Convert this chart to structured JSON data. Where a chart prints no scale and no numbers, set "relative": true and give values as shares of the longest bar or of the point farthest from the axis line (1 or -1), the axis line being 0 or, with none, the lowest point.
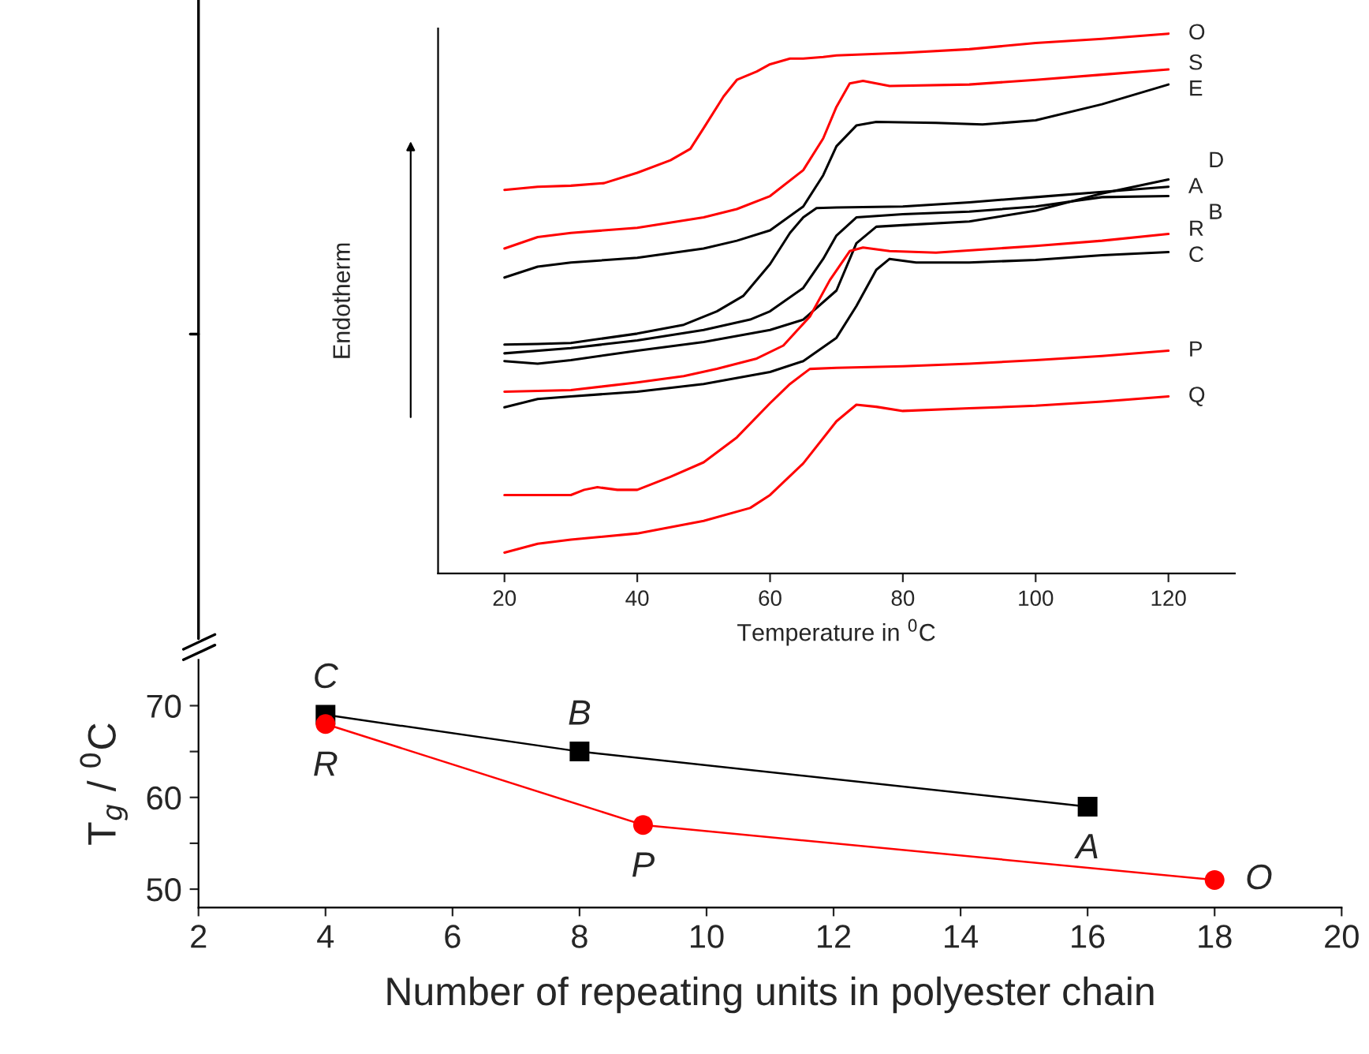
{
  "chart_data": [
    {
      "type": "line",
      "xlabel": "Number of repeating units in polyester chain",
      "ylabel": "T$_{g}$ / $^{0}$C",
      "xlim": [
        2,
        20
      ],
      "xticks": [
        2,
        4,
        6,
        8,
        10,
        12,
        14,
        16,
        18,
        20
      ],
      "ylim": [
        48,
        75
      ],
      "yticks": [
        50,
        {
          "value": 55,
          "label": null
        },
        60,
        {
          "value": 65,
          "label": null
        },
        70
      ],
      "series": [
        {
          "color": "#000000",
          "marker": "square",
          "x": [
            4,
            8,
            16
          ],
          "values": [
            69,
            65,
            59
          ]
        },
        {
          "color": "#ff0000",
          "marker": "circle",
          "x": [
            4,
            9,
            18
          ],
          "values": [
            68,
            57,
            51
          ]
        }
      ],
      "annotations": [
        {
          "text": "C",
          "x": 4,
          "y": 69
        },
        {
          "text": "R",
          "x": 4,
          "y": 68
        },
        {
          "text": "B",
          "x": 8,
          "y": 65
        },
        {
          "text": "P",
          "x": 9,
          "y": 57
        },
        {
          "text": "A",
          "x": 16,
          "y": 59
        },
        {
          "text": "O",
          "x": 18,
          "y": 51
        }
      ],
      "grid": false,
      "legend": false
    },
    {
      "type": "line",
      "relative": true,
      "xlabel": "Temperature in $^{0}$C",
      "ylabel": "Endotherm",
      "xlim": [
        10,
        130
      ],
      "xticks": [
        20,
        40,
        60,
        80,
        100,
        120
      ],
      "series": [
        {
          "name": "O",
          "color": "#ff0000",
          "x": [
            20,
            25,
            30,
            35,
            40,
            45,
            48,
            50,
            53,
            55,
            58,
            60,
            63,
            65,
            68,
            70,
            80,
            90,
            100,
            110,
            120
          ],
          "values": [
            0.699,
            0.705,
            0.707,
            0.712,
            0.732,
            0.756,
            0.778,
            0.818,
            0.879,
            0.911,
            0.927,
            0.941,
            0.952,
            0.952,
            0.955,
            0.958,
            0.963,
            0.97,
            0.982,
            0.99,
            1.0
          ]
        },
        {
          "name": "S",
          "color": "#ff0000",
          "x": [
            20,
            25,
            30,
            40,
            50,
            55,
            60,
            65,
            68,
            70,
            72,
            74,
            78,
            90,
            100,
            110,
            120
          ],
          "values": [
            0.586,
            0.608,
            0.616,
            0.626,
            0.646,
            0.662,
            0.687,
            0.737,
            0.798,
            0.859,
            0.904,
            0.909,
            0.899,
            0.902,
            0.911,
            0.921,
            0.931
          ]
        },
        {
          "name": "E",
          "color": "#000000",
          "x": [
            20,
            25,
            30,
            40,
            50,
            55,
            60,
            65,
            68,
            70,
            73,
            76,
            85,
            92,
            100,
            110,
            120
          ],
          "values": [
            0.53,
            0.551,
            0.559,
            0.568,
            0.586,
            0.601,
            0.621,
            0.667,
            0.727,
            0.783,
            0.823,
            0.83,
            0.828,
            0.825,
            0.833,
            0.864,
            0.902
          ]
        },
        {
          "name": "D",
          "color": "#000000",
          "x": [
            20,
            25,
            30,
            40,
            50,
            60,
            65,
            70,
            73,
            76,
            80,
            90,
            100,
            110,
            120
          ],
          "values": [
            0.369,
            0.364,
            0.371,
            0.389,
            0.406,
            0.429,
            0.449,
            0.505,
            0.596,
            0.628,
            0.631,
            0.638,
            0.659,
            0.692,
            0.719
          ]
        },
        {
          "name": "A",
          "color": "#000000",
          "x": [
            20,
            25,
            30,
            40,
            47,
            52,
            56,
            60,
            63,
            65,
            67,
            70,
            80,
            90,
            100,
            110,
            120
          ],
          "values": [
            0.401,
            0.402,
            0.404,
            0.422,
            0.439,
            0.465,
            0.495,
            0.556,
            0.616,
            0.646,
            0.664,
            0.665,
            0.667,
            0.675,
            0.685,
            0.695,
            0.705
          ]
        },
        {
          "name": "B",
          "color": "#000000",
          "x": [
            20,
            30,
            40,
            50,
            57,
            60,
            65,
            68,
            70,
            73,
            80,
            90,
            100,
            110,
            120
          ],
          "values": [
            0.384,
            0.394,
            0.409,
            0.429,
            0.449,
            0.465,
            0.51,
            0.566,
            0.611,
            0.646,
            0.652,
            0.657,
            0.667,
            0.685,
            0.687
          ]
        },
        {
          "name": "R",
          "color": "#ff0000",
          "x": [
            20,
            30,
            40,
            47,
            52,
            58,
            62,
            66,
            69,
            72,
            74,
            78,
            85,
            100,
            110,
            120
          ],
          "values": [
            0.31,
            0.313,
            0.328,
            0.34,
            0.354,
            0.374,
            0.399,
            0.455,
            0.525,
            0.581,
            0.588,
            0.581,
            0.578,
            0.591,
            0.601,
            0.614
          ]
        },
        {
          "name": "C",
          "color": "#000000",
          "x": [
            20,
            25,
            30,
            40,
            50,
            60,
            65,
            70,
            73,
            76,
            78,
            82,
            90,
            100,
            110,
            120
          ],
          "values": [
            0.28,
            0.296,
            0.301,
            0.31,
            0.325,
            0.348,
            0.369,
            0.414,
            0.475,
            0.545,
            0.566,
            0.559,
            0.559,
            0.564,
            0.573,
            0.579
          ]
        },
        {
          "name": "P",
          "color": "#ff0000",
          "x": [
            20,
            30,
            32,
            34,
            37,
            40,
            45,
            50,
            55,
            60,
            63,
            66,
            70,
            80,
            90,
            100,
            110,
            120
          ],
          "values": [
            0.111,
            0.111,
            0.121,
            0.126,
            0.121,
            0.121,
            0.146,
            0.174,
            0.222,
            0.288,
            0.325,
            0.354,
            0.356,
            0.359,
            0.364,
            0.371,
            0.379,
            0.389
          ]
        },
        {
          "name": "Q",
          "color": "#ff0000",
          "x": [
            20,
            25,
            30,
            40,
            50,
            57,
            60,
            65,
            70,
            73,
            76,
            80,
            90,
            100,
            110,
            120
          ],
          "values": [
            0.0,
            0.017,
            0.025,
            0.037,
            0.061,
            0.086,
            0.111,
            0.172,
            0.253,
            0.285,
            0.281,
            0.273,
            0.278,
            0.283,
            0.291,
            0.301
          ]
        }
      ],
      "grid": false,
      "legend": false
    }
  ]
}
